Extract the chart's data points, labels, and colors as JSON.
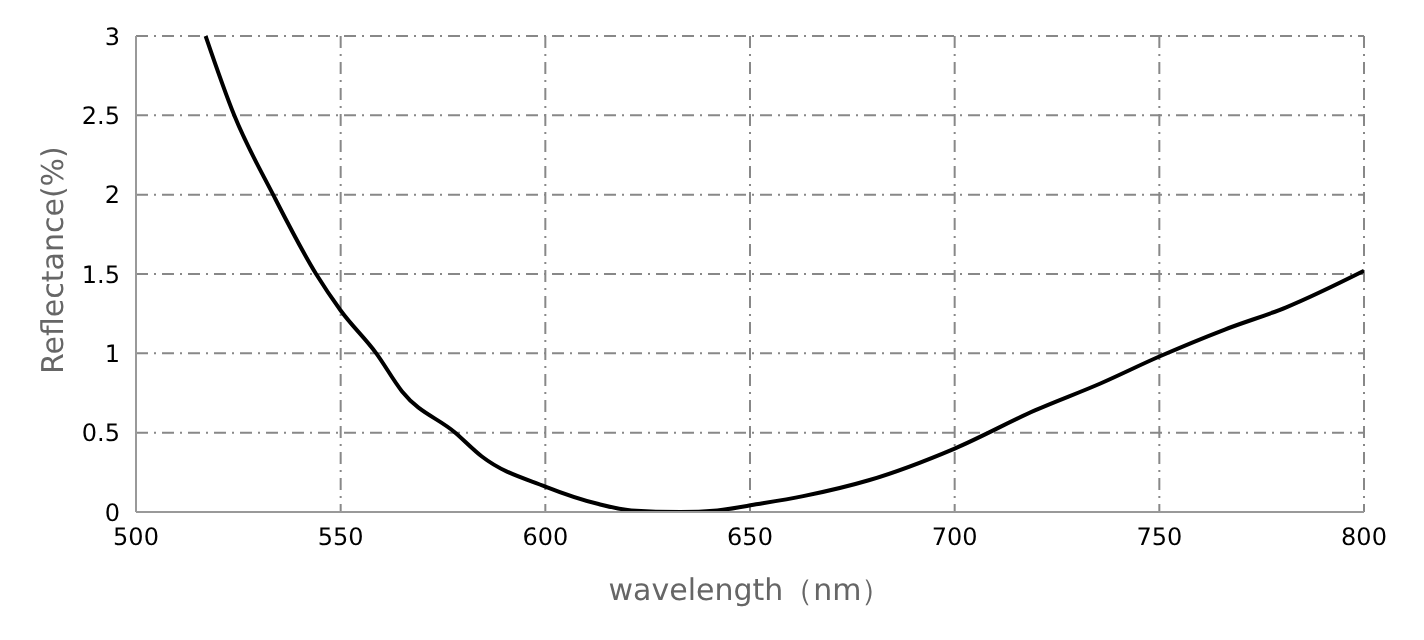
{
  "chart_data": {
    "type": "line",
    "xlabel": "wavelength（nm）",
    "ylabel": "Reflectance(%)",
    "x": [
      517,
      524,
      533.5,
      544,
      550,
      558.7,
      565,
      578,
      584.5,
      600,
      613,
      621,
      633,
      642,
      652,
      663,
      679,
      700,
      719.6,
      735.6,
      750,
      766,
      781,
      800
    ],
    "series": [
      {
        "color": "#000000",
        "values": [
          3,
          2.5,
          2,
          1.5,
          1.27,
          1,
          0.76,
          0.5,
          0.35,
          0.16,
          0.05,
          0.01,
          0,
          0.01,
          0.05,
          0.1,
          0.2,
          0.4,
          0.64,
          0.81,
          0.98,
          1.15,
          1.29,
          1.52
        ]
      }
    ],
    "xlim": [
      500,
      800
    ],
    "xticks": [
      500,
      550,
      600,
      650,
      700,
      750,
      800
    ],
    "ylim": [
      0,
      3
    ],
    "yticks": [
      0,
      0.5,
      1,
      1.5,
      2,
      2.5,
      3
    ],
    "grid": true,
    "line_style": "solid"
  }
}
